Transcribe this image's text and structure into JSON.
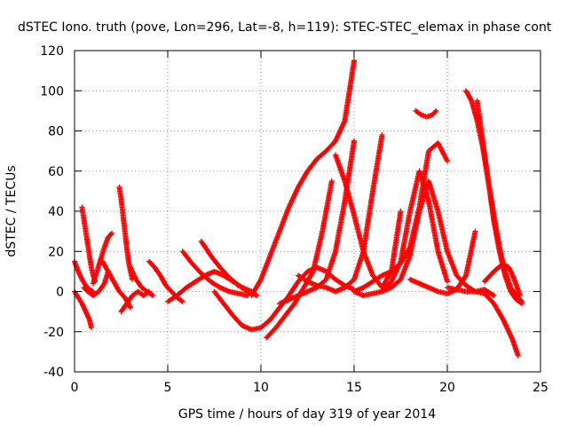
{
  "chart_data": {
    "type": "scatter",
    "title": "dSTEC Iono. truth (pove, Lon=296, Lat=-8, h=119): STEC-STEC_elemax in phase cont",
    "xlabel": "GPS time / hours of day 319 of year 2014",
    "ylabel": "dSTEC  / TECUs",
    "xlim": [
      0,
      25
    ],
    "ylim": [
      -40,
      120
    ],
    "xticks": [
      "0",
      "5",
      "10",
      "15",
      "20",
      "25"
    ],
    "yticks": [
      "-40",
      "-20",
      "0",
      "20",
      "40",
      "60",
      "80",
      "100",
      "120"
    ],
    "grid": true,
    "marker": "+",
    "color": "#ff0000",
    "series": [
      {
        "x": [
          0,
          0.2,
          0.4,
          0.6,
          0.8,
          0.9
        ],
        "y": [
          0,
          -3,
          -6,
          -10,
          -14,
          -18
        ]
      },
      {
        "x": [
          0,
          0.2,
          0.4,
          0.6,
          0.8,
          1.0
        ],
        "y": [
          15,
          10,
          6,
          3,
          1,
          0
        ]
      },
      {
        "x": [
          0.4,
          0.5,
          0.6,
          0.7,
          0.8,
          0.9,
          1.0,
          1.1
        ],
        "y": [
          42,
          36,
          30,
          24,
          18,
          12,
          8,
          5
        ]
      },
      {
        "x": [
          0.5,
          0.7,
          1.0,
          1.3,
          1.6,
          1.8
        ],
        "y": [
          2,
          0,
          -2,
          0,
          4,
          10
        ]
      },
      {
        "x": [
          1.0,
          1.2,
          1.4,
          1.6,
          1.8,
          2.0
        ],
        "y": [
          4,
          10,
          16,
          22,
          27,
          29
        ]
      },
      {
        "x": [
          1.5,
          1.8,
          2.1,
          2.4,
          2.7,
          3.0
        ],
        "y": [
          15,
          10,
          5,
          0,
          -3,
          -8
        ]
      },
      {
        "x": [
          2.4,
          2.5,
          2.6,
          2.7,
          2.8,
          2.9,
          3.0,
          3.1
        ],
        "y": [
          52,
          46,
          38,
          30,
          22,
          15,
          10,
          6
        ]
      },
      {
        "x": [
          2.5,
          2.8,
          3.1,
          3.4,
          3.7,
          4.0
        ],
        "y": [
          -10,
          -6,
          -2,
          0,
          -2,
          0
        ]
      },
      {
        "x": [
          3.0,
          3.3,
          3.6,
          3.9,
          4.2
        ],
        "y": [
          12,
          6,
          2,
          0,
          -2
        ]
      },
      {
        "x": [
          4.0,
          4.3,
          4.6,
          4.9,
          5.2,
          5.5,
          5.8
        ],
        "y": [
          15,
          12,
          8,
          3,
          0,
          -3,
          -5
        ]
      },
      {
        "x": [
          5.0,
          5.5,
          6.0,
          6.5,
          7.0,
          7.5,
          8.0,
          8.5,
          9.0,
          9.5
        ],
        "y": [
          -5,
          -2,
          2,
          5,
          8,
          10,
          8,
          5,
          2,
          0
        ]
      },
      {
        "x": [
          5.8,
          6.3,
          6.8,
          7.3,
          7.8,
          8.3,
          8.8,
          9.3
        ],
        "y": [
          20,
          14,
          9,
          5,
          2,
          0,
          -1,
          -2
        ]
      },
      {
        "x": [
          6.8,
          7.3,
          7.8,
          8.3,
          8.8,
          9.3,
          9.8
        ],
        "y": [
          25,
          18,
          12,
          7,
          3,
          0,
          -2
        ]
      },
      {
        "x": [
          7.5,
          8.0,
          8.5,
          9.0,
          9.5,
          10.0,
          10.5,
          11.0,
          11.5,
          12.0,
          12.5,
          13.0,
          13.5,
          14.0,
          14.5,
          15.0
        ],
        "y": [
          0,
          -6,
          -12,
          -17,
          -19,
          -18,
          -14,
          -8,
          -2,
          5,
          10,
          12,
          10,
          6,
          3,
          1
        ]
      },
      {
        "x": [
          9.5,
          10.0,
          10.5,
          11.0,
          11.5,
          12.0,
          12.5,
          13.0,
          13.5,
          14.0,
          14.5,
          15.0
        ],
        "y": [
          -2,
          6,
          18,
          30,
          42,
          52,
          60,
          66,
          70,
          75,
          85,
          115
        ]
      },
      {
        "x": [
          10.3,
          10.8,
          11.3,
          11.8,
          12.3,
          12.8,
          13.3,
          13.8
        ],
        "y": [
          -23,
          -18,
          -12,
          -6,
          2,
          10,
          30,
          55
        ]
      },
      {
        "x": [
          11.0,
          11.5,
          12.0,
          12.5,
          13.0,
          13.5,
          14.0,
          14.5,
          15.0
        ],
        "y": [
          -6,
          -4,
          -2,
          0,
          2,
          6,
          20,
          45,
          75
        ]
      },
      {
        "x": [
          12.0,
          12.5,
          13.0,
          13.5,
          14.0,
          14.5,
          15.0,
          15.5,
          16.0,
          16.5
        ],
        "y": [
          8,
          5,
          3,
          2,
          0,
          2,
          6,
          20,
          50,
          78
        ]
      },
      {
        "x": [
          14.0,
          14.5,
          15.0,
          15.5,
          16.0,
          16.5,
          17.0,
          17.5
        ],
        "y": [
          68,
          55,
          38,
          20,
          8,
          2,
          10,
          40
        ]
      },
      {
        "x": [
          15.0,
          15.5,
          16.0,
          16.5,
          17.0,
          17.5,
          18.0,
          18.5,
          19.0,
          19.5,
          20.0
        ],
        "y": [
          0,
          2,
          5,
          8,
          10,
          14,
          22,
          42,
          70,
          74,
          65
        ]
      },
      {
        "x": [
          15.0,
          15.5,
          16.0,
          16.5,
          17.0,
          17.5,
          18.0,
          18.5,
          19.0,
          19.5,
          20.0,
          20.5,
          21.0,
          21.5,
          22.0,
          22.5
        ],
        "y": [
          0,
          -2,
          -1,
          0,
          2,
          6,
          18,
          40,
          55,
          40,
          20,
          8,
          3,
          0,
          1,
          -2
        ]
      },
      {
        "x": [
          16.5,
          17.0,
          17.5,
          18.0,
          18.5,
          19.0,
          19.5,
          20.0
        ],
        "y": [
          0,
          5,
          15,
          40,
          60,
          45,
          20,
          5
        ]
      },
      {
        "x": [
          18.3,
          18.6,
          18.9,
          19.2,
          19.4
        ],
        "y": [
          90,
          88,
          87,
          88,
          90
        ]
      },
      {
        "x": [
          18.0,
          18.5,
          19.0,
          19.5,
          20.0,
          20.5,
          21.0,
          21.5
        ],
        "y": [
          6,
          4,
          2,
          0,
          -1,
          1,
          8,
          30
        ]
      },
      {
        "x": [
          21.0,
          21.3,
          21.6,
          21.9,
          22.2,
          22.5,
          22.8,
          23.1,
          23.4,
          23.7,
          24.0
        ],
        "y": [
          100,
          95,
          85,
          72,
          55,
          38,
          22,
          10,
          2,
          -2,
          -5
        ]
      },
      {
        "x": [
          21.6,
          21.9,
          22.2,
          22.5,
          22.8,
          23.1,
          23.4,
          23.7,
          24.0
        ],
        "y": [
          95,
          75,
          55,
          35,
          20,
          8,
          0,
          -4,
          -6
        ]
      },
      {
        "x": [
          20.0,
          20.5,
          21.0,
          21.5,
          22.0,
          22.5,
          23.0,
          23.5,
          23.8
        ],
        "y": [
          2,
          1,
          0,
          0,
          -1,
          -6,
          -14,
          -24,
          -32
        ]
      },
      {
        "x": [
          22.0,
          22.5,
          23.0,
          23.3,
          23.6,
          23.9
        ],
        "y": [
          5,
          10,
          14,
          12,
          6,
          -2
        ]
      }
    ]
  }
}
